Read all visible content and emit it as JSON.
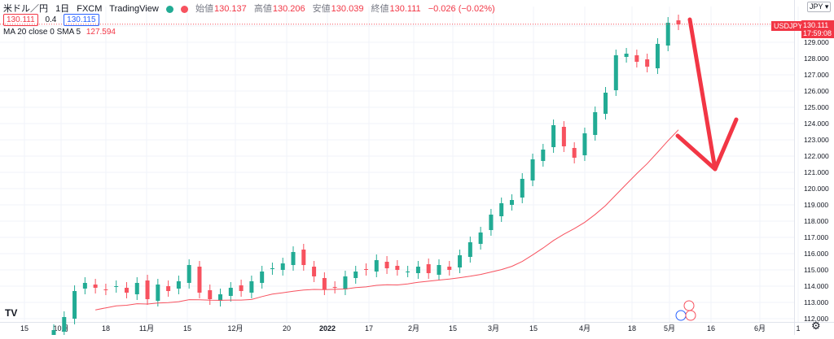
{
  "header": {
    "symbol": "米ドル／円",
    "interval": "1日",
    "exchange": "FXCM",
    "source": "TradingView",
    "open_label": "始値",
    "open": "130.137",
    "high_label": "高値",
    "high": "130.206",
    "low_label": "安値",
    "low": "130.039",
    "close_label": "終値",
    "close": "130.111",
    "change": "−0.026 (−0.02%)"
  },
  "quote": {
    "sell": "130.111",
    "spread": "0.4",
    "buy": "130.115"
  },
  "indicator": {
    "label": "MA 20 close 0 SMA 5",
    "value": "127.594"
  },
  "price_scale": {
    "currency_button": "JPY",
    "symbol_tag": "USDJPY",
    "last_price": "130.111",
    "countdown": "17:59:08",
    "ticks": [
      "130.000",
      "129.000",
      "128.000",
      "127.000",
      "126.000",
      "125.000",
      "124.000",
      "123.000",
      "122.000",
      "121.000",
      "120.000",
      "119.000",
      "118.000",
      "117.000",
      "116.000",
      "115.000",
      "114.000",
      "113.000",
      "112.000"
    ]
  },
  "time_axis": {
    "ticks": [
      "15",
      "10月",
      "18",
      "11月",
      "15",
      "12月",
      "20",
      "2022",
      "17",
      "2月",
      "15",
      "3月",
      "15",
      "4月",
      "18",
      "5月",
      "16",
      "6月",
      "1"
    ]
  },
  "logo": "TV",
  "colors": {
    "up": "#22ab94",
    "down": "#f7525f",
    "ma": "#f7525f",
    "arrow": "#f23645"
  },
  "chart_data": {
    "type": "candlestick",
    "symbol": "USDJPY",
    "period": "2021-09-30 to 2022-05-03",
    "approx_daily_closes": [
      111.3,
      112.1,
      113.7,
      114.2,
      113.9,
      113.8,
      114.0,
      113.6,
      114.2,
      113.2,
      114.1,
      113.7,
      114.3,
      115.3,
      113.6,
      113.2,
      113.5,
      113.9,
      113.7,
      114.3,
      114.9,
      115.1,
      115.4,
      116.1,
      115.3,
      114.6,
      113.8,
      113.9,
      114.6,
      114.9,
      115.0,
      115.6,
      115.1,
      115.0,
      114.9,
      115.2,
      114.8,
      115.3,
      115.0,
      115.9,
      116.7,
      117.3,
      118.4,
      119.1,
      119.3,
      120.6,
      121.8,
      122.4,
      123.9,
      122.6,
      121.9,
      123.4,
      124.7,
      125.9,
      128.2,
      128.3,
      127.8,
      127.5,
      128.9,
      130.2,
      130.1
    ],
    "ma20_end": 127.594,
    "ylim": [
      112.0,
      131.0
    ]
  }
}
